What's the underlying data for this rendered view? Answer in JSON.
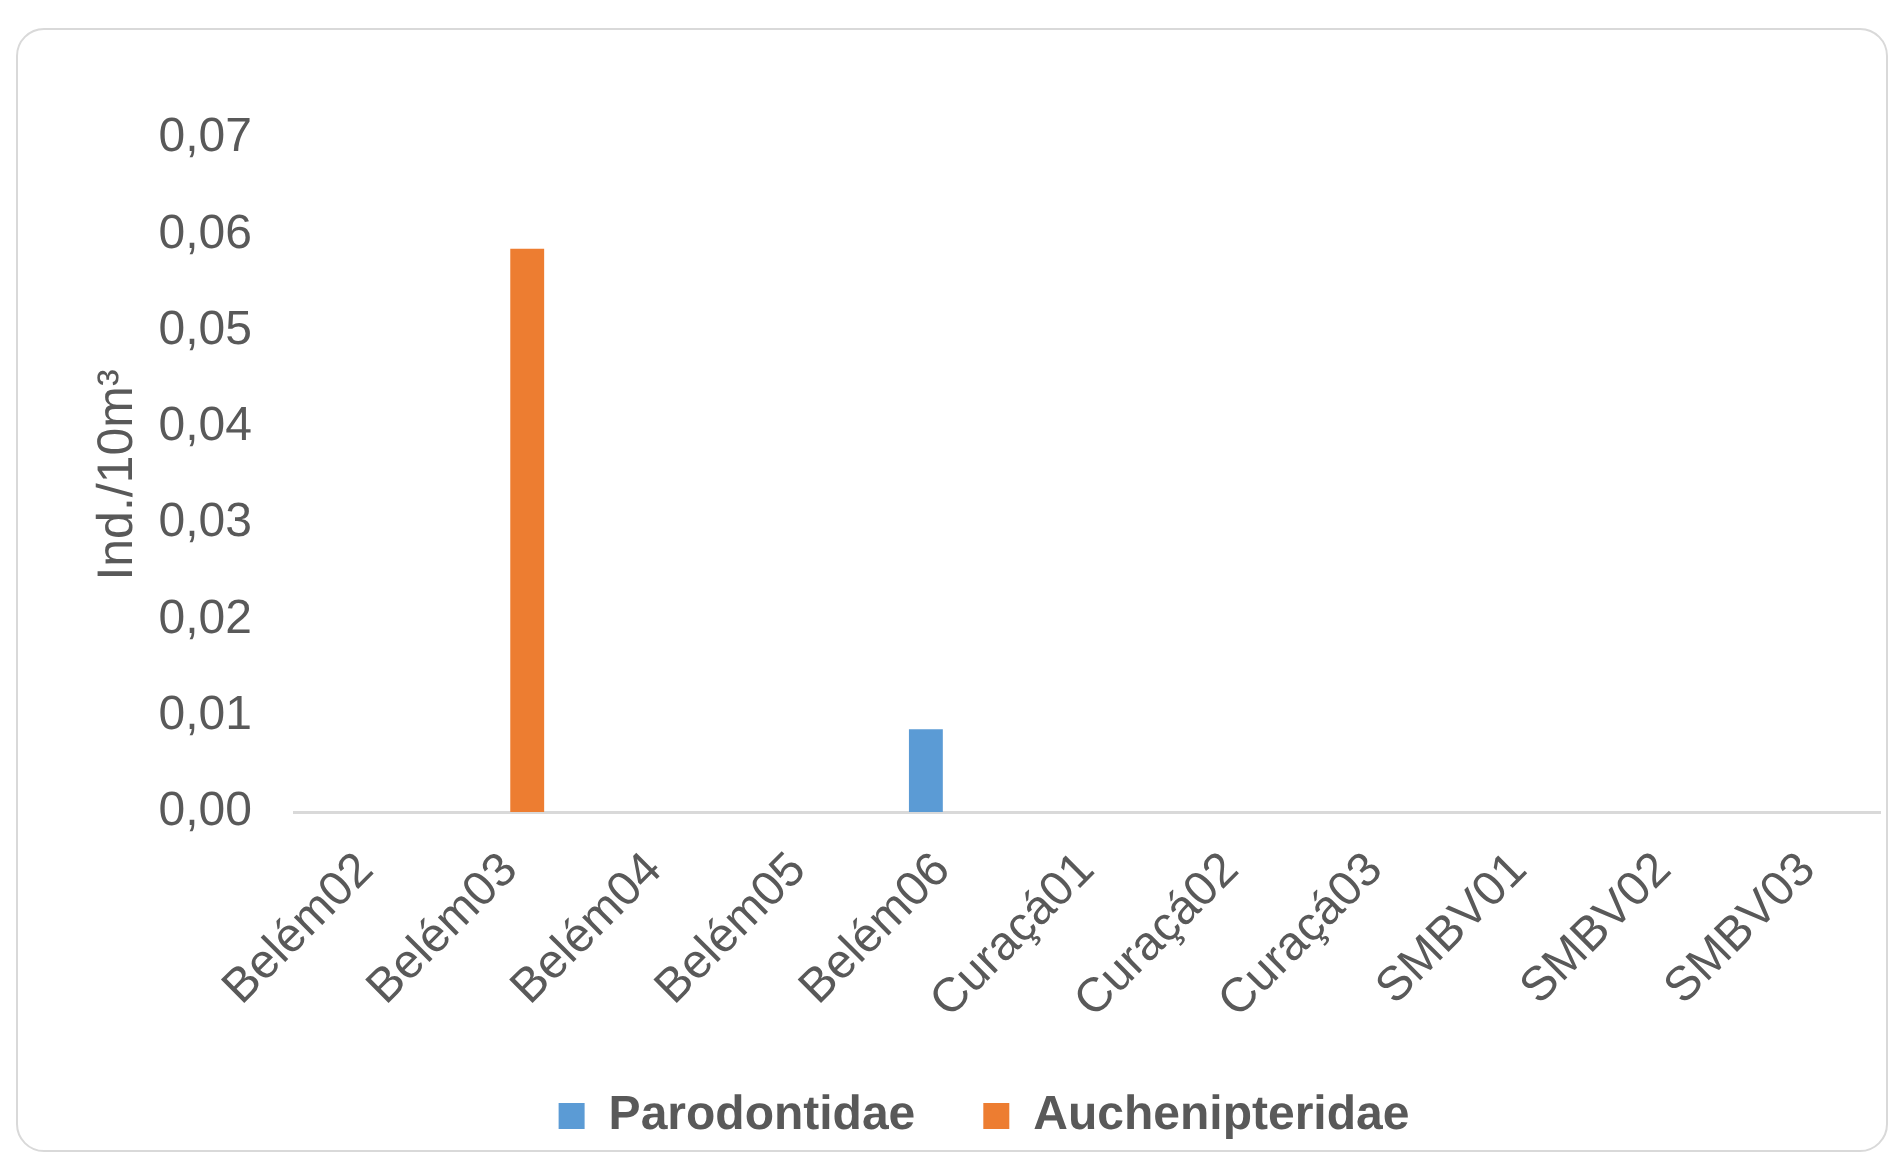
{
  "chart_data": {
    "type": "bar",
    "ylabel": "Ind./10m³",
    "categories": [
      "Belém02",
      "Belém03",
      "Belém04",
      "Belém05",
      "Belém06",
      "Curaçá01",
      "Curaçá02",
      "Curaçá03",
      "SMBV01",
      "SMBV02",
      "SMBV03"
    ],
    "series": [
      {
        "name": "Parodontidae",
        "color": "#5b9bd5",
        "values": [
          0,
          0,
          0,
          0,
          0.0086,
          0,
          0,
          0,
          0,
          0,
          0
        ]
      },
      {
        "name": "Auchenipteridae",
        "color": "#ed7d31",
        "values": [
          0,
          0.0585,
          0,
          0,
          0,
          0,
          0,
          0,
          0,
          0,
          0
        ]
      }
    ],
    "ylim": [
      0,
      0.07
    ],
    "yticks": [
      {
        "value": 0,
        "label": "0,00"
      },
      {
        "value": 0.01,
        "label": "0,01"
      },
      {
        "value": 0.02,
        "label": "0,02"
      },
      {
        "value": 0.03,
        "label": "0,03"
      },
      {
        "value": 0.04,
        "label": "0,04"
      },
      {
        "value": 0.05,
        "label": "0,05"
      },
      {
        "value": 0.06,
        "label": "0,06"
      },
      {
        "value": 0.07,
        "label": "0,07"
      }
    ],
    "grid": false,
    "legend": "bottom"
  }
}
